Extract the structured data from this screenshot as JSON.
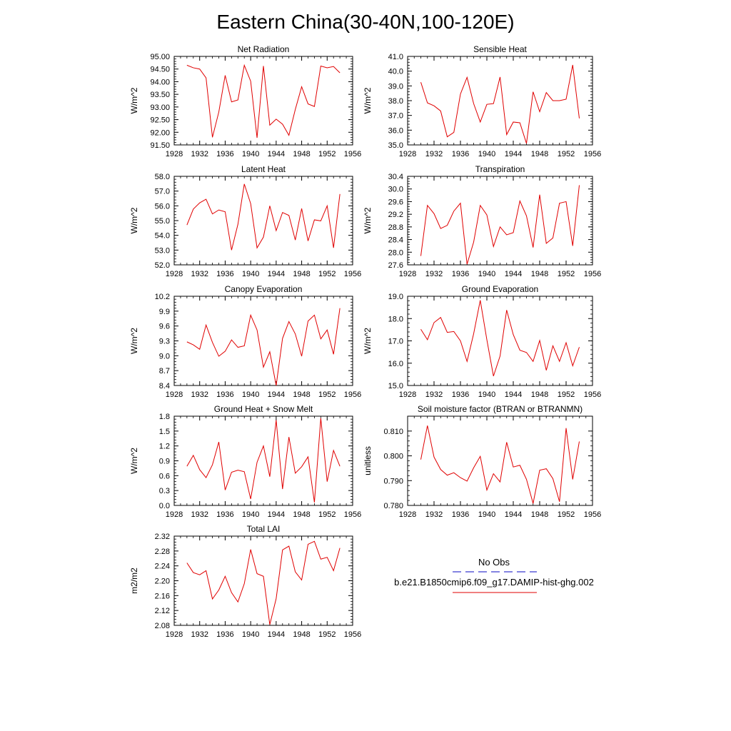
{
  "figure": {
    "title": "Eastern China(30-40N,100-120E)"
  },
  "legend": {
    "obs_label": "No Obs",
    "obs_color": "#3b3bd0",
    "model_label": "b.e21.B1850cmip6.f09_g17.DAMIP-hist-ghg.002",
    "model_color": "#e00000"
  },
  "chart_data": [
    {
      "type": "line",
      "title": "Net Radiation",
      "ylabel": "W/m^2",
      "xlim": [
        1928,
        1956
      ],
      "ylim": [
        91.5,
        95.0
      ],
      "xticks": [
        1928,
        1932,
        1936,
        1940,
        1944,
        1948,
        1952,
        1956
      ],
      "yticks": [
        "91.50",
        "92.00",
        "92.50",
        "93.00",
        "93.50",
        "94.00",
        "94.50",
        "95.00"
      ],
      "series": [
        {
          "color": "#e00000",
          "x": [
            1930,
            1931,
            1932,
            1933,
            1934,
            1935,
            1936,
            1937,
            1938,
            1939,
            1940,
            1941,
            1942,
            1943,
            1944,
            1945,
            1946,
            1947,
            1948,
            1949,
            1950,
            1951,
            1952,
            1953,
            1954
          ],
          "values": [
            94.65,
            94.55,
            94.5,
            94.15,
            91.8,
            92.8,
            94.25,
            93.2,
            93.28,
            94.65,
            94.02,
            91.78,
            94.62,
            92.28,
            92.52,
            92.32,
            91.88,
            92.9,
            93.8,
            93.12,
            93.02,
            94.62,
            94.55,
            94.6,
            94.35
          ]
        }
      ]
    },
    {
      "type": "line",
      "title": "Sensible Heat",
      "ylabel": "W/m^2",
      "xlim": [
        1928,
        1956
      ],
      "ylim": [
        35.0,
        41.0
      ],
      "xticks": [
        1928,
        1932,
        1936,
        1940,
        1944,
        1948,
        1952,
        1956
      ],
      "yticks": [
        "35.0",
        "36.0",
        "37.0",
        "38.0",
        "39.0",
        "40.0",
        "41.0"
      ],
      "series": [
        {
          "color": "#e00000",
          "x": [
            1930,
            1931,
            1932,
            1933,
            1934,
            1935,
            1936,
            1937,
            1938,
            1939,
            1940,
            1941,
            1942,
            1943,
            1944,
            1945,
            1946,
            1947,
            1948,
            1949,
            1950,
            1951,
            1952,
            1953,
            1954
          ],
          "values": [
            39.25,
            37.85,
            37.65,
            37.3,
            35.55,
            35.85,
            38.45,
            39.58,
            37.8,
            36.55,
            37.75,
            37.8,
            39.6,
            35.7,
            36.55,
            36.5,
            35.1,
            38.6,
            37.25,
            38.55,
            38.0,
            38.0,
            38.1,
            40.42,
            36.8
          ]
        }
      ]
    },
    {
      "type": "line",
      "title": "Latent Heat",
      "ylabel": "W/m^2",
      "xlim": [
        1928,
        1956
      ],
      "ylim": [
        52.0,
        58.0
      ],
      "xticks": [
        1928,
        1932,
        1936,
        1940,
        1944,
        1948,
        1952,
        1956
      ],
      "yticks": [
        "52.0",
        "53.0",
        "54.0",
        "55.0",
        "56.0",
        "57.0",
        "58.0"
      ],
      "series": [
        {
          "color": "#e00000",
          "x": [
            1930,
            1931,
            1932,
            1933,
            1934,
            1935,
            1936,
            1937,
            1938,
            1939,
            1940,
            1941,
            1942,
            1943,
            1944,
            1945,
            1946,
            1947,
            1948,
            1949,
            1950,
            1951,
            1952,
            1953,
            1954
          ],
          "values": [
            54.7,
            55.78,
            56.2,
            56.45,
            55.45,
            55.72,
            55.6,
            53.0,
            54.75,
            57.48,
            56.15,
            53.15,
            53.88,
            56.0,
            54.32,
            55.55,
            55.35,
            53.68,
            55.82,
            53.62,
            55.05,
            54.98,
            56.0,
            53.15,
            56.8
          ]
        }
      ]
    },
    {
      "type": "line",
      "title": "Transpiration",
      "ylabel": "W/m^2",
      "xlim": [
        1928,
        1956
      ],
      "ylim": [
        27.6,
        30.4
      ],
      "xticks": [
        1928,
        1932,
        1936,
        1940,
        1944,
        1948,
        1952,
        1956
      ],
      "yticks": [
        "27.6",
        "28.0",
        "28.4",
        "28.8",
        "29.2",
        "29.6",
        "30.0",
        "30.4"
      ],
      "series": [
        {
          "color": "#e00000",
          "x": [
            1930,
            1931,
            1932,
            1933,
            1934,
            1935,
            1936,
            1937,
            1938,
            1939,
            1940,
            1941,
            1942,
            1943,
            1944,
            1945,
            1946,
            1947,
            1948,
            1949,
            1950,
            1951,
            1952,
            1953,
            1954
          ],
          "values": [
            27.88,
            29.48,
            29.22,
            28.75,
            28.85,
            29.3,
            29.55,
            27.62,
            28.32,
            29.48,
            29.18,
            28.18,
            28.8,
            28.55,
            28.62,
            29.62,
            29.15,
            28.15,
            29.82,
            28.28,
            28.45,
            29.55,
            29.6,
            28.2,
            30.12
          ]
        }
      ]
    },
    {
      "type": "line",
      "title": "Canopy Evaporation",
      "ylabel": "W/m^2",
      "xlim": [
        1928,
        1956
      ],
      "ylim": [
        8.4,
        10.2
      ],
      "xticks": [
        1928,
        1932,
        1936,
        1940,
        1944,
        1948,
        1952,
        1956
      ],
      "yticks": [
        "8.4",
        "8.7",
        "9.0",
        "9.3",
        "9.6",
        "9.9",
        "10.2"
      ],
      "series": [
        {
          "color": "#e00000",
          "x": [
            1930,
            1931,
            1932,
            1933,
            1934,
            1935,
            1936,
            1937,
            1938,
            1939,
            1940,
            1941,
            1942,
            1943,
            1944,
            1945,
            1946,
            1947,
            1948,
            1949,
            1950,
            1951,
            1952,
            1953,
            1954
          ],
          "values": [
            9.28,
            9.22,
            9.13,
            9.62,
            9.27,
            8.99,
            9.09,
            9.32,
            9.17,
            9.2,
            9.82,
            9.52,
            8.77,
            9.08,
            8.4,
            9.35,
            9.69,
            9.44,
            8.99,
            9.7,
            9.82,
            9.34,
            9.52,
            9.03,
            9.96
          ]
        }
      ]
    },
    {
      "type": "line",
      "title": "Ground Evaporation",
      "ylabel": "W/m^2",
      "xlim": [
        1928,
        1956
      ],
      "ylim": [
        15.0,
        19.0
      ],
      "xticks": [
        1928,
        1932,
        1936,
        1940,
        1944,
        1948,
        1952,
        1956
      ],
      "yticks": [
        "15.0",
        "16.0",
        "17.0",
        "18.0",
        "19.0"
      ],
      "series": [
        {
          "color": "#e00000",
          "x": [
            1930,
            1931,
            1932,
            1933,
            1934,
            1935,
            1936,
            1937,
            1938,
            1939,
            1940,
            1941,
            1942,
            1943,
            1944,
            1945,
            1946,
            1947,
            1948,
            1949,
            1950,
            1951,
            1952,
            1953,
            1954
          ],
          "values": [
            17.52,
            17.05,
            17.82,
            18.05,
            17.38,
            17.42,
            17.0,
            16.08,
            17.32,
            18.82,
            17.05,
            15.42,
            16.32,
            18.38,
            17.28,
            16.58,
            16.48,
            16.08,
            17.02,
            15.68,
            16.78,
            16.08,
            16.92,
            15.88,
            16.72
          ]
        }
      ]
    },
    {
      "type": "line",
      "title": "Ground Heat + Snow Melt",
      "ylabel": "W/m^2",
      "xlim": [
        1928,
        1956
      ],
      "ylim": [
        0.0,
        1.8
      ],
      "xticks": [
        1928,
        1932,
        1936,
        1940,
        1944,
        1948,
        1952,
        1956
      ],
      "yticks": [
        "0.0",
        "0.3",
        "0.6",
        "0.9",
        "1.2",
        "1.5",
        "1.8"
      ],
      "series": [
        {
          "color": "#e00000",
          "x": [
            1930,
            1931,
            1932,
            1933,
            1934,
            1935,
            1936,
            1937,
            1938,
            1939,
            1940,
            1941,
            1942,
            1943,
            1944,
            1945,
            1946,
            1947,
            1948,
            1949,
            1950,
            1951,
            1952,
            1953,
            1954
          ],
          "values": [
            0.79,
            1.01,
            0.72,
            0.56,
            0.82,
            1.28,
            0.31,
            0.67,
            0.71,
            0.68,
            0.13,
            0.87,
            1.2,
            0.58,
            1.72,
            0.33,
            1.38,
            0.65,
            0.78,
            0.98,
            0.06,
            1.76,
            0.48,
            1.11,
            0.79
          ]
        }
      ]
    },
    {
      "type": "line",
      "title": "Soil moisture factor (BTRAN or BTRANMN)",
      "ylabel": "unitless",
      "xlim": [
        1928,
        1956
      ],
      "ylim": [
        0.78,
        0.816
      ],
      "xticks": [
        1928,
        1932,
        1936,
        1940,
        1944,
        1948,
        1952,
        1956
      ],
      "yticks": [
        "0.780",
        "0.790",
        "0.800",
        "0.810"
      ],
      "series": [
        {
          "color": "#e00000",
          "x": [
            1930,
            1931,
            1932,
            1933,
            1934,
            1935,
            1936,
            1937,
            1938,
            1939,
            1940,
            1941,
            1942,
            1943,
            1944,
            1945,
            1946,
            1947,
            1948,
            1949,
            1950,
            1951,
            1952,
            1953,
            1954
          ],
          "values": [
            0.7985,
            0.8122,
            0.7995,
            0.7945,
            0.7922,
            0.7932,
            0.7912,
            0.7898,
            0.7952,
            0.7998,
            0.7862,
            0.7928,
            0.7895,
            0.8055,
            0.7955,
            0.7962,
            0.7905,
            0.7808,
            0.7942,
            0.7948,
            0.7908,
            0.7815,
            0.8112,
            0.7905,
            0.8058
          ]
        }
      ]
    },
    {
      "type": "line",
      "title": "Total LAI",
      "ylabel": "m2/m2",
      "xlim": [
        1928,
        1956
      ],
      "ylim": [
        2.08,
        2.32
      ],
      "xticks": [
        1928,
        1932,
        1936,
        1940,
        1944,
        1948,
        1952,
        1956
      ],
      "yticks": [
        "2.08",
        "2.12",
        "2.16",
        "2.20",
        "2.24",
        "2.28",
        "2.32"
      ],
      "series": [
        {
          "color": "#e00000",
          "x": [
            1930,
            1931,
            1932,
            1933,
            1934,
            1935,
            1936,
            1937,
            1938,
            1939,
            1940,
            1941,
            1942,
            1943,
            1944,
            1945,
            1946,
            1947,
            1948,
            1949,
            1950,
            1951,
            1952,
            1953,
            1954
          ],
          "values": [
            2.248,
            2.222,
            2.216,
            2.227,
            2.151,
            2.175,
            2.212,
            2.168,
            2.143,
            2.192,
            2.284,
            2.219,
            2.212,
            2.082,
            2.152,
            2.283,
            2.293,
            2.224,
            2.202,
            2.298,
            2.306,
            2.258,
            2.263,
            2.227,
            2.288
          ]
        }
      ]
    }
  ]
}
